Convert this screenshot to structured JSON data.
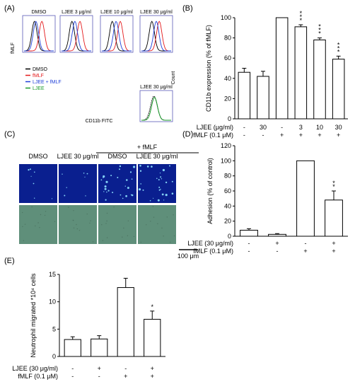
{
  "panels": {
    "A": {
      "label": "(A)",
      "histograms": [
        {
          "title": "DMSO"
        },
        {
          "title": "LJEE 3 μg/ml"
        },
        {
          "title": "LJEE 10 μg/ml"
        },
        {
          "title": "LJEE 30 μg/ml"
        }
      ],
      "extra_histogram_title": "LJEE 30 μg/ml",
      "ylabel": "fMLF",
      "count_label": "Count",
      "xlabel": "CD11b FITC",
      "legend": [
        {
          "label": "DMSO",
          "color": "#000000"
        },
        {
          "label": "fMLF",
          "color": "#e41a1c"
        },
        {
          "label": "LJEE + fMLF",
          "color": "#1f3fd8"
        },
        {
          "label": "LJEE",
          "color": "#1a9a2a"
        }
      ]
    },
    "B": {
      "label": "(B)"
    },
    "C": {
      "label": "(C)",
      "group_label": "+ fMLF",
      "columns": [
        "DMSO",
        "LJEE 30 μg/ml",
        "DMSO",
        "LJEE 30 μg/ml"
      ],
      "scale_label": "100 μm",
      "fluor_color": "#0a1f8f",
      "bright_color": "#5f8f7a"
    },
    "D": {
      "label": "(D)"
    },
    "E": {
      "label": "(E)"
    }
  },
  "chart_data": [
    {
      "panel": "B",
      "type": "bar",
      "ylabel": "CD11b expression (% of fMLF)",
      "ylim": [
        0,
        100
      ],
      "yticks": [
        0,
        20,
        40,
        60,
        80,
        100
      ],
      "values": [
        46,
        42,
        100,
        91,
        78,
        59
      ],
      "errors": [
        4,
        5,
        0,
        2,
        2,
        3
      ],
      "significance": [
        "",
        "",
        "",
        "***",
        "***",
        "***"
      ],
      "conditions": [
        {
          "label": "LJEE (μg/ml)",
          "values": [
            "-",
            "30",
            "-",
            "3",
            "10",
            "30"
          ]
        },
        {
          "label": "fMLF (0.1 μM)",
          "values": [
            "-",
            "-",
            "+",
            "+",
            "+",
            "+"
          ]
        }
      ]
    },
    {
      "panel": "D",
      "type": "bar",
      "ylabel": "Adhesion (% of control)",
      "ylim": [
        0,
        120
      ],
      "yticks": [
        0,
        20,
        40,
        60,
        80,
        100,
        120
      ],
      "values": [
        8,
        2.5,
        100,
        48
      ],
      "errors": [
        2,
        1,
        0,
        12
      ],
      "significance": [
        "",
        "",
        "",
        "**"
      ],
      "conditions": [
        {
          "label": "LJEE (30 μg/ml)",
          "values": [
            "-",
            "+",
            "-",
            "+"
          ]
        },
        {
          "label": "fMLF (0.1 μM)",
          "values": [
            "-",
            "-",
            "+",
            "+"
          ]
        }
      ]
    },
    {
      "panel": "E",
      "type": "bar",
      "ylabel": "Neutrophil migrated *10⁴ cells",
      "ylim": [
        0,
        15
      ],
      "yticks": [
        0,
        5,
        10,
        15
      ],
      "values": [
        3.1,
        3.2,
        12.6,
        6.8
      ],
      "errors": [
        0.5,
        0.6,
        1.7,
        1.5
      ],
      "significance": [
        "",
        "",
        "",
        "*"
      ],
      "conditions": [
        {
          "label": "LJEE (30 μg/ml)",
          "values": [
            "-",
            "+",
            "-",
            "+"
          ]
        },
        {
          "label": "fMLF (0.1 μM)",
          "values": [
            "-",
            "-",
            "+",
            "+"
          ]
        }
      ]
    }
  ]
}
